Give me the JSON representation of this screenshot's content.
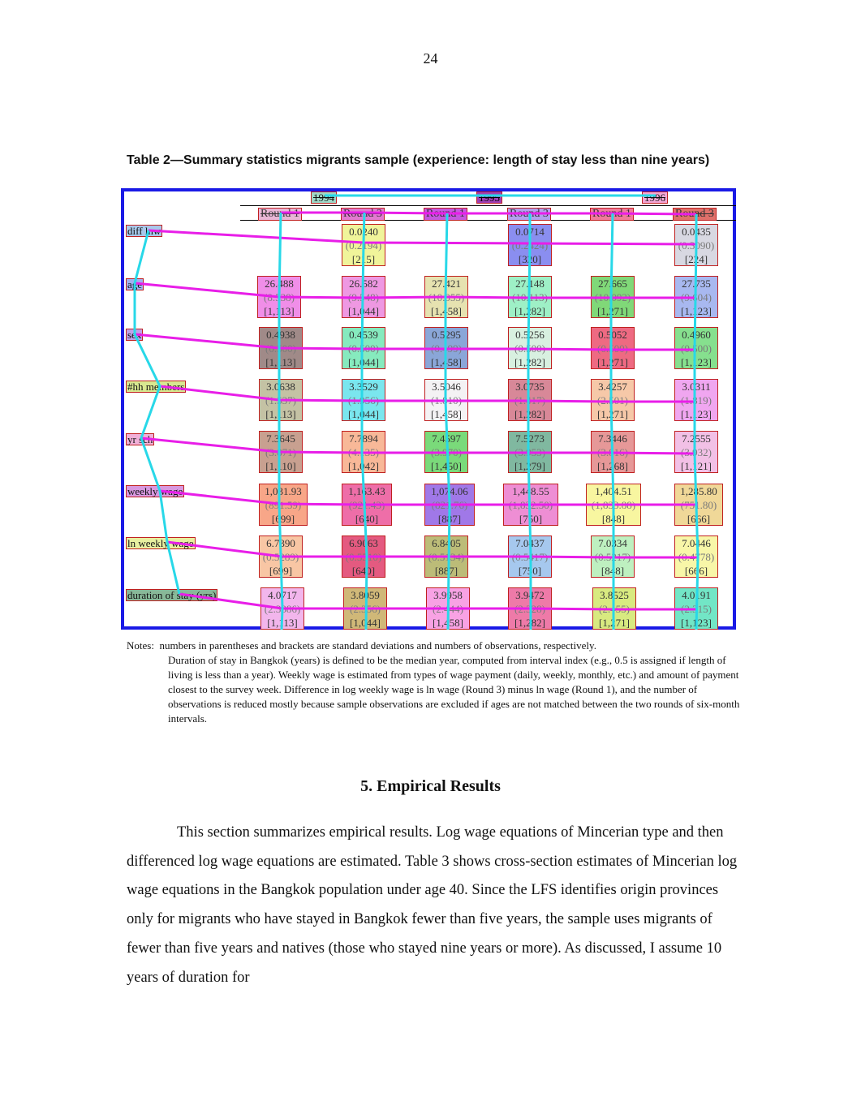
{
  "page_number": "24",
  "table": {
    "title": "Table 2—Summary statistics migrants sample (experience:  length of stay less than nine years)",
    "years": [
      "1994",
      "1995",
      "1996"
    ],
    "rounds": [
      "Round 1",
      "Round 3",
      "Round 1",
      "Round 3",
      "Round 1",
      "Round 3"
    ],
    "rows": [
      {
        "label": "diff lnw",
        "cells": [
          null,
          {
            "mean": "0.0240",
            "sd": "(0.2194)",
            "n": "[215]"
          },
          null,
          {
            "mean": "0.0714",
            "sd": "(0.2424)",
            "n": "[320]"
          },
          null,
          {
            "mean": "0.0435",
            "sd": "(0.3090)",
            "n": "[224]"
          }
        ]
      },
      {
        "label": "age",
        "cells": [
          {
            "mean": "26.488",
            "sd": "(8.538)",
            "n": "[1,113]"
          },
          {
            "mean": "26.582",
            "sd": "(9.548)",
            "n": "[1,044]"
          },
          {
            "mean": "27.421",
            "sd": "(10.055)",
            "n": "[1,458]"
          },
          {
            "mean": "27.148",
            "sd": "(10.113)",
            "n": "[1,282]"
          },
          {
            "mean": "27.665",
            "sd": "(10.092)",
            "n": "[1,271]"
          },
          {
            "mean": "27.735",
            "sd": "(9.604)",
            "n": "[1,123]"
          }
        ]
      },
      {
        "label": "sex",
        "cells": [
          {
            "mean": "0.4938",
            "sd": "(0.500)",
            "n": "[1,113]"
          },
          {
            "mean": "0.4539",
            "sd": "(0.500)",
            "n": "[1,044]"
          },
          {
            "mean": "0.5295",
            "sd": "(0.499)",
            "n": "[1,458]"
          },
          {
            "mean": "0.5256",
            "sd": "(0.500)",
            "n": "[1,282]"
          },
          {
            "mean": "0.5052",
            "sd": "(0.500)",
            "n": "[1,271]"
          },
          {
            "mean": "0.4960",
            "sd": "(0.500)",
            "n": "[1,123]"
          }
        ]
      },
      {
        "label": "#hh members",
        "cells": [
          {
            "mean": "3.0638",
            "sd": "(1.537)",
            "n": "[1,113]"
          },
          {
            "mean": "3.3529",
            "sd": "(1.956)",
            "n": "[1,044]"
          },
          {
            "mean": "3.5046",
            "sd": "(1.810)",
            "n": "[1,458]"
          },
          {
            "mean": "3.0735",
            "sd": "(1.417)",
            "n": "[1,282]"
          },
          {
            "mean": "3.4257",
            "sd": "(2.501)",
            "n": "[1,271]"
          },
          {
            "mean": "3.0311",
            "sd": "(1.819)",
            "n": "[1,123]"
          }
        ]
      },
      {
        "label": "yr sch",
        "cells": [
          {
            "mean": "7.3645",
            "sd": "(3.871)",
            "n": "[1,110]"
          },
          {
            "mean": "7.7894",
            "sd": "(4.135)",
            "n": "[1,042]"
          },
          {
            "mean": "7.4597",
            "sd": "(3.970)",
            "n": "[1,450]"
          },
          {
            "mean": "7.5273",
            "sd": "(3.953)",
            "n": "[1,279]"
          },
          {
            "mean": "7.3446",
            "sd": "(3.816)",
            "n": "[1,268]"
          },
          {
            "mean": "7.2555",
            "sd": "(3.932)",
            "n": "[1,121]"
          }
        ]
      },
      {
        "label": "weekly wage",
        "cells": [
          {
            "mean": "1,031.93",
            "sd": "(891.59)",
            "n": "[699]"
          },
          {
            "mean": "1,163.43",
            "sd": "(921.43)",
            "n": "[640]"
          },
          {
            "mean": "1,074.06",
            "sd": "(821.76)",
            "n": "[887]"
          },
          {
            "mean": "1,448.55",
            "sd": "(1,832.50)",
            "n": "[750]"
          },
          {
            "mean": "1,404.51",
            "sd": "(1,833.88)",
            "n": "[848]"
          },
          {
            "mean": "1,285.80",
            "sd": "(751.80)",
            "n": "[666]"
          }
        ]
      },
      {
        "label": "ln weekly wage",
        "cells": [
          {
            "mean": "6.7390",
            "sd": "(0.5289)",
            "n": "[699]"
          },
          {
            "mean": "6.9063",
            "sd": "(0.5510)",
            "n": "[640]"
          },
          {
            "mean": "6.8405",
            "sd": "(0.5134)",
            "n": "[887]"
          },
          {
            "mean": "7.0437",
            "sd": "(0.5417)",
            "n": "[750]"
          },
          {
            "mean": "7.0334",
            "sd": "(0.5217)",
            "n": "[848]"
          },
          {
            "mean": "7.0446",
            "sd": "(0.4778)",
            "n": "[666]"
          }
        ]
      },
      {
        "label": "duration of stay (yrs)",
        "cells": [
          {
            "mean": "4.0717",
            "sd": "(2.3386)",
            "n": "[1,113]"
          },
          {
            "mean": "3.8059",
            "sd": "(2.356)",
            "n": "[1,044]"
          },
          {
            "mean": "3.9958",
            "sd": "(2.444)",
            "n": "[1,458]"
          },
          {
            "mean": "3.9472",
            "sd": "(2.328)",
            "n": "[1,282]"
          },
          {
            "mean": "3.8525",
            "sd": "(2.455)",
            "n": "[1,271]"
          },
          {
            "mean": "4.0191",
            "sd": "(2.315)",
            "n": "[1,123]"
          }
        ]
      }
    ]
  },
  "notes": {
    "label": "Notes:",
    "first_line": "numbers in parentheses and brackets are standard deviations and numbers of observations, respectively.",
    "body": "Duration of stay in Bangkok (years) is defined to be the median year, computed from interval index (e.g., 0.5 is assigned if length of living is less than a year).  Weekly wage is estimated from types of wage payment (daily, weekly, monthly, etc.) and amount of payment closest to the survey week.  Difference in log weekly wage is ln wage (Round 3) minus ln wage (Round 1), and the number of observations is reduced mostly because sample observations are excluded if ages are not matched between the two rounds of six-month intervals."
  },
  "section": {
    "heading": "5.  Empirical Results",
    "paragraph": "This section summarizes empirical results.  Log wage equations of Mincerian type and then differenced log wage equations are estimated.  Table 3 shows cross-section estimates of Mincerian log wage equations in the Bangkok population under age 40.  Since the LFS identifies origin provinces only for migrants who have stayed in Bangkok fewer than five years, the sample uses migrants of fewer than five years and natives (those who stayed nine years or more).  As discussed, I assume 10 years of duration for"
  }
}
